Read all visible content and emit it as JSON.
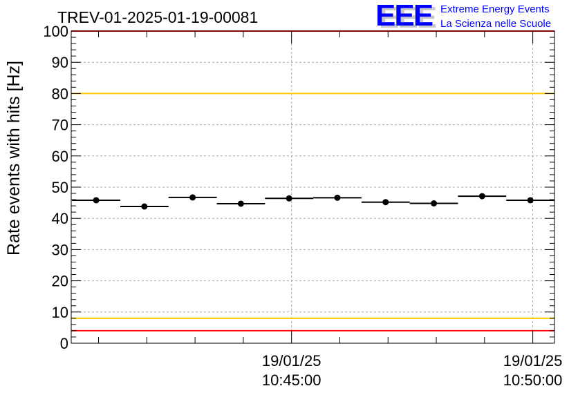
{
  "chart_data": {
    "type": "scatter",
    "title": "TREV-01-2025-01-19-00081",
    "xlabel": "",
    "ylabel": "Rate events with hits [Hz]",
    "ylim": [
      0,
      100
    ],
    "xlim": [
      "10:40:26",
      "10:50:27"
    ],
    "grid": true,
    "bin_width_seconds": 60,
    "x": [
      "10:40:57",
      "10:41:57",
      "10:42:57",
      "10:43:57",
      "10:44:57",
      "10:45:57",
      "10:46:57",
      "10:47:57",
      "10:48:57",
      "10:49:57"
    ],
    "values": [
      45.8,
      43.8,
      46.7,
      44.7,
      46.4,
      46.6,
      45.2,
      44.8,
      47.1,
      45.8
    ],
    "yticks": [
      "0",
      "10",
      "20",
      "30",
      "40",
      "50",
      "60",
      "70",
      "80",
      "90",
      "100"
    ],
    "xticks": [
      {
        "time": "10:45:00",
        "date": "19/01/25",
        "label": "10:45:00"
      },
      {
        "time": "10:50:00",
        "date": "19/01/25",
        "label": "10:50:00"
      }
    ],
    "reference_lines": [
      {
        "value": 100,
        "color": "#ff0000"
      },
      {
        "value": 4,
        "color": "#ff0000"
      },
      {
        "value": 80,
        "color": "#ffcc00"
      },
      {
        "value": 8,
        "color": "#ffcc00"
      }
    ]
  },
  "logo": {
    "letters": "EEE",
    "line1": "Extreme Energy Events",
    "line2": "La Scienza nelle Scuole",
    "color": "#0000ff"
  }
}
